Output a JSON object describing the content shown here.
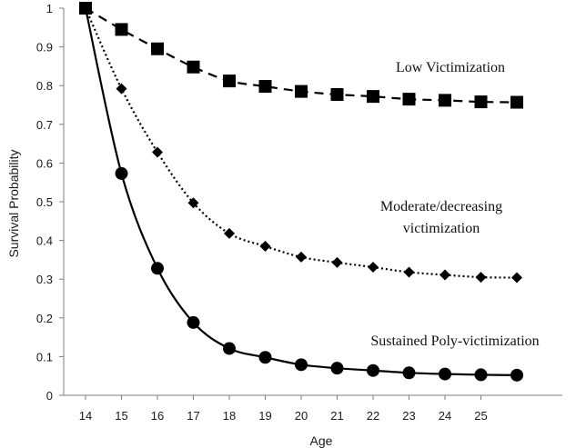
{
  "chart_data": {
    "type": "line",
    "xlabel": "Age",
    "ylabel": "Survival Probability",
    "x_ticks": [
      "14",
      "15",
      "16",
      "17",
      "18",
      "19",
      "20",
      "21",
      "22",
      "23",
      "24",
      "25"
    ],
    "y_ticks": [
      "0",
      "0.1",
      "0.2",
      "0.3",
      "0.4",
      "0.5",
      "0.6",
      "0.7",
      "0.8",
      "0.9",
      "1"
    ],
    "x": [
      14,
      15,
      16,
      17,
      18,
      19,
      20,
      21,
      22,
      23,
      24,
      25,
      26
    ],
    "xlim": [
      14,
      26.2
    ],
    "ylim": [
      0,
      1
    ],
    "grid": false,
    "series": [
      {
        "name": "Low Victimization",
        "values": [
          1.0,
          0.945,
          0.895,
          0.848,
          0.812,
          0.798,
          0.785,
          0.777,
          0.772,
          0.765,
          0.762,
          0.758,
          0.757
        ],
        "marker": "square",
        "line_style": "dashed",
        "color": "#000000"
      },
      {
        "name": "Moderate/decreasing victimization",
        "label_lines": [
          "Moderate/decreasing",
          "victimization"
        ],
        "values": [
          1.0,
          0.792,
          0.628,
          0.497,
          0.418,
          0.385,
          0.357,
          0.343,
          0.331,
          0.318,
          0.311,
          0.305,
          0.304
        ],
        "marker": "diamond",
        "line_style": "dotted",
        "color": "#000000"
      },
      {
        "name": "Sustained Poly-victimization",
        "values": [
          1.0,
          0.573,
          0.328,
          0.188,
          0.121,
          0.098,
          0.079,
          0.07,
          0.064,
          0.058,
          0.055,
          0.053,
          0.052
        ],
        "marker": "circle",
        "line_style": "solid",
        "color": "#000000"
      }
    ]
  }
}
